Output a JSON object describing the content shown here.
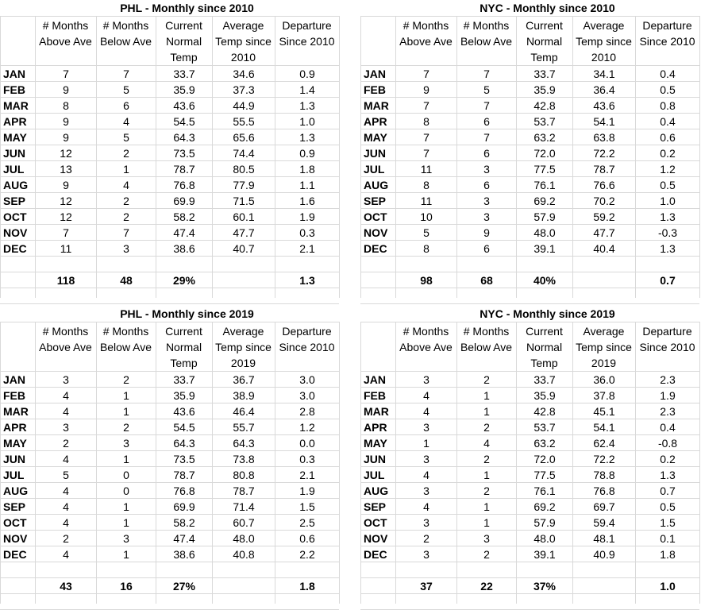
{
  "tables": [
    {
      "title": "PHL - Monthly since 2010",
      "headers": [
        "# Months Above Ave",
        "# Months Below Ave",
        "Current Normal Temp",
        "Average Temp since 2010",
        "Departure Since 2010"
      ],
      "rows": [
        [
          "JAN",
          "7",
          "7",
          "33.7",
          "34.6",
          "0.9"
        ],
        [
          "FEB",
          "9",
          "5",
          "35.9",
          "37.3",
          "1.4"
        ],
        [
          "MAR",
          "8",
          "6",
          "43.6",
          "44.9",
          "1.3"
        ],
        [
          "APR",
          "9",
          "4",
          "54.5",
          "55.5",
          "1.0"
        ],
        [
          "MAY",
          "9",
          "5",
          "64.3",
          "65.6",
          "1.3"
        ],
        [
          "JUN",
          "12",
          "2",
          "73.5",
          "74.4",
          "0.9"
        ],
        [
          "JUL",
          "13",
          "1",
          "78.7",
          "80.5",
          "1.8"
        ],
        [
          "AUG",
          "9",
          "4",
          "76.8",
          "77.9",
          "1.1"
        ],
        [
          "SEP",
          "12",
          "2",
          "69.9",
          "71.5",
          "1.6"
        ],
        [
          "OCT",
          "12",
          "2",
          "58.2",
          "60.1",
          "1.9"
        ],
        [
          "NOV",
          "7",
          "7",
          "47.4",
          "47.7",
          "0.3"
        ],
        [
          "DEC",
          "11",
          "3",
          "38.6",
          "40.7",
          "2.1"
        ]
      ],
      "totals": [
        "",
        "118",
        "48",
        "29%",
        "",
        "1.3"
      ]
    },
    {
      "title": "NYC - Monthly since 2010",
      "headers": [
        "# Months Above Ave",
        "# Months Below Ave",
        "Current Normal Temp",
        "Average Temp since 2010",
        "Departure Since 2010"
      ],
      "rows": [
        [
          "JAN",
          "7",
          "7",
          "33.7",
          "34.1",
          "0.4"
        ],
        [
          "FEB",
          "9",
          "5",
          "35.9",
          "36.4",
          "0.5"
        ],
        [
          "MAR",
          "7",
          "7",
          "42.8",
          "43.6",
          "0.8"
        ],
        [
          "APR",
          "8",
          "6",
          "53.7",
          "54.1",
          "0.4"
        ],
        [
          "MAY",
          "7",
          "7",
          "63.2",
          "63.8",
          "0.6"
        ],
        [
          "JUN",
          "7",
          "6",
          "72.0",
          "72.2",
          "0.2"
        ],
        [
          "JUL",
          "11",
          "3",
          "77.5",
          "78.7",
          "1.2"
        ],
        [
          "AUG",
          "8",
          "6",
          "76.1",
          "76.6",
          "0.5"
        ],
        [
          "SEP",
          "11",
          "3",
          "69.2",
          "70.2",
          "1.0"
        ],
        [
          "OCT",
          "10",
          "3",
          "57.9",
          "59.2",
          "1.3"
        ],
        [
          "NOV",
          "5",
          "9",
          "48.0",
          "47.7",
          "-0.3"
        ],
        [
          "DEC",
          "8",
          "6",
          "39.1",
          "40.4",
          "1.3"
        ]
      ],
      "totals": [
        "",
        "98",
        "68",
        "40%",
        "",
        "0.7"
      ]
    },
    {
      "title": "PHL - Monthly since 2019",
      "headers": [
        "# Months Above Ave",
        "# Months Below Ave",
        "Current Normal Temp",
        "Average Temp since 2019",
        "Departure Since 2010"
      ],
      "rows": [
        [
          "JAN",
          "3",
          "2",
          "33.7",
          "36.7",
          "3.0"
        ],
        [
          "FEB",
          "4",
          "1",
          "35.9",
          "38.9",
          "3.0"
        ],
        [
          "MAR",
          "4",
          "1",
          "43.6",
          "46.4",
          "2.8"
        ],
        [
          "APR",
          "3",
          "2",
          "54.5",
          "55.7",
          "1.2"
        ],
        [
          "MAY",
          "2",
          "3",
          "64.3",
          "64.3",
          "0.0"
        ],
        [
          "JUN",
          "4",
          "1",
          "73.5",
          "73.8",
          "0.3"
        ],
        [
          "JUL",
          "5",
          "0",
          "78.7",
          "80.8",
          "2.1"
        ],
        [
          "AUG",
          "4",
          "0",
          "76.8",
          "78.7",
          "1.9"
        ],
        [
          "SEP",
          "4",
          "1",
          "69.9",
          "71.4",
          "1.5"
        ],
        [
          "OCT",
          "4",
          "1",
          "58.2",
          "60.7",
          "2.5"
        ],
        [
          "NOV",
          "2",
          "3",
          "47.4",
          "48.0",
          "0.6"
        ],
        [
          "DEC",
          "4",
          "1",
          "38.6",
          "40.8",
          "2.2"
        ]
      ],
      "totals": [
        "",
        "43",
        "16",
        "27%",
        "",
        "1.8"
      ]
    },
    {
      "title": "NYC - Monthly since 2019",
      "headers": [
        "# Months Above Ave",
        "# Months Below Ave",
        "Current Normal Temp",
        "Average Temp since 2019",
        "Departure Since 2010"
      ],
      "rows": [
        [
          "JAN",
          "3",
          "2",
          "33.7",
          "36.0",
          "2.3"
        ],
        [
          "FEB",
          "4",
          "1",
          "35.9",
          "37.8",
          "1.9"
        ],
        [
          "MAR",
          "4",
          "1",
          "42.8",
          "45.1",
          "2.3"
        ],
        [
          "APR",
          "3",
          "2",
          "53.7",
          "54.1",
          "0.4"
        ],
        [
          "MAY",
          "1",
          "4",
          "63.2",
          "62.4",
          "-0.8"
        ],
        [
          "JUN",
          "3",
          "2",
          "72.0",
          "72.2",
          "0.2"
        ],
        [
          "JUL",
          "4",
          "1",
          "77.5",
          "78.8",
          "1.3"
        ],
        [
          "AUG",
          "3",
          "2",
          "76.1",
          "76.8",
          "0.7"
        ],
        [
          "SEP",
          "4",
          "1",
          "69.2",
          "69.7",
          "0.5"
        ],
        [
          "OCT",
          "3",
          "1",
          "57.9",
          "59.4",
          "1.5"
        ],
        [
          "NOV",
          "2",
          "3",
          "48.0",
          "48.1",
          "0.1"
        ],
        [
          "DEC",
          "3",
          "2",
          "39.1",
          "40.9",
          "1.8"
        ]
      ],
      "totals": [
        "",
        "37",
        "22",
        "37%",
        "",
        "1.0"
      ]
    }
  ]
}
